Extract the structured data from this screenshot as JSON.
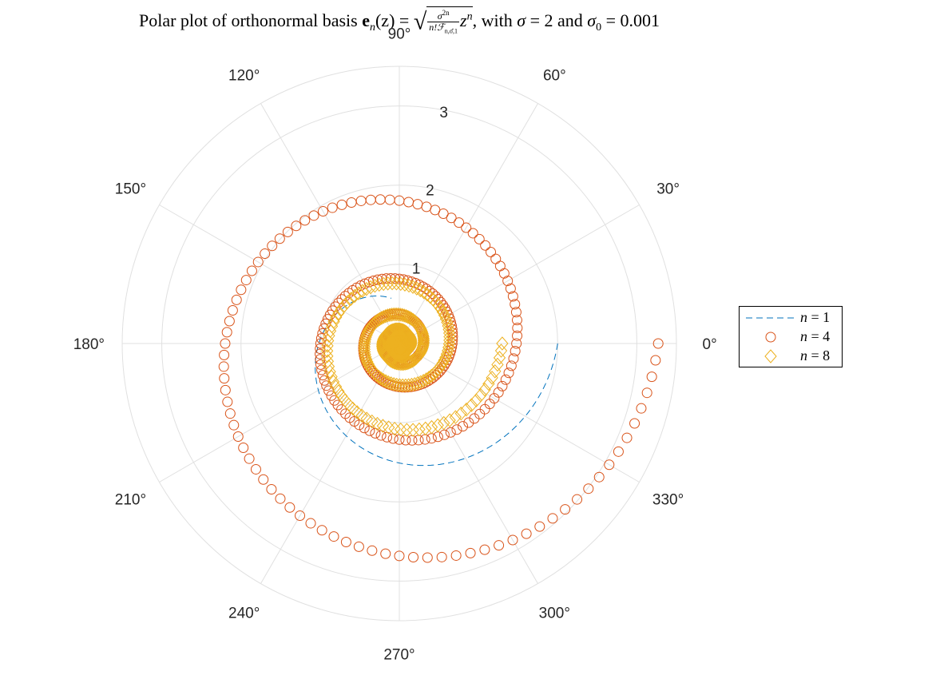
{
  "chart_data": {
    "type": "polar-scatter",
    "title": "Polar plot of orthonormal basis e_n(z) = sqrt(σ^{2n} / (n! F_{n,σ̂,1})) z^n, with σ = 2 and σ_0 = 0.001",
    "title_parts": {
      "prefix": "Polar plot of orthonormal basis ",
      "e_sym": "e",
      "e_sub": "n",
      "arg": "(z) = ",
      "num": "σ",
      "num_sup": "2n",
      "den": "n!ℱ",
      "den_sub": "n,σ̂,1",
      "z": "z",
      "z_sup": "n",
      "suffix1": ", with ",
      "sigma": "σ",
      "eq2": " = 2 and ",
      "sigma0": "σ",
      "sigma0_sub": "0",
      "eq3": " = 0.001"
    },
    "theta_ticks_deg": [
      0,
      30,
      60,
      90,
      120,
      150,
      180,
      210,
      240,
      270,
      300,
      330
    ],
    "theta_tick_labels": [
      "0°",
      "30°",
      "60°",
      "90°",
      "120°",
      "150°",
      "180°",
      "210°",
      "240°",
      "270°",
      "300°",
      "330°"
    ],
    "r_ticks": [
      1,
      2,
      3
    ],
    "r_tick_labels": [
      "1",
      "2",
      "3"
    ],
    "rlim": [
      0,
      3.5
    ],
    "grid": true,
    "legend_position": "east outside",
    "series": [
      {
        "name": "n = 1",
        "style": "dashed-line",
        "color": "#0072BD",
        "spiral": {
          "theta_start_deg": 0,
          "theta_end_deg": -260,
          "r_start": 2.0,
          "r_end": 0.58,
          "shape": "linear"
        },
        "sample_points": [
          {
            "theta_deg": 0,
            "r": 2.0
          },
          {
            "theta_deg": 270,
            "r": 1.52
          },
          {
            "theta_deg": 180,
            "r": 1.04
          },
          {
            "theta_deg": 100,
            "r": 0.58
          }
        ]
      },
      {
        "name": "n = 4",
        "style": "circle-markers",
        "color": "#D95319",
        "spiral": {
          "theta_start_deg": 0,
          "theta_end_deg": -1500,
          "r_start": 3.27,
          "r_end": 0.12,
          "shape": "log",
          "count": 400
        },
        "sample_points": [
          {
            "theta_deg": 0,
            "r": 3.27
          },
          {
            "theta_deg": 270,
            "r": 2.55
          },
          {
            "theta_deg": 180,
            "r": 2.0
          },
          {
            "theta_deg": 90,
            "r": 1.45
          },
          {
            "theta_deg": 0,
            "r": 1.05
          },
          {
            "theta_deg": 270,
            "r": 0.75
          },
          {
            "theta_deg": 180,
            "r": 0.48
          }
        ]
      },
      {
        "name": "n = 8",
        "style": "diamond-markers",
        "color": "#EDB120",
        "spiral": {
          "theta_start_deg": 0,
          "theta_end_deg": -1620,
          "r_start": 1.3,
          "r_end": 0.05,
          "shape": "log",
          "count": 400
        },
        "sample_points": [
          {
            "theta_deg": 0,
            "r": 1.3
          },
          {
            "theta_deg": 270,
            "r": 0.95
          },
          {
            "theta_deg": 180,
            "r": 0.76
          },
          {
            "theta_deg": 90,
            "r": 0.62
          },
          {
            "theta_deg": 0,
            "r": 0.43
          },
          {
            "theta_deg": 270,
            "r": 0.35
          }
        ]
      }
    ]
  },
  "legend": {
    "items": [
      {
        "var": "n",
        "eq": " = 1"
      },
      {
        "var": "n",
        "eq": " = 4"
      },
      {
        "var": "n",
        "eq": " = 8"
      }
    ]
  }
}
